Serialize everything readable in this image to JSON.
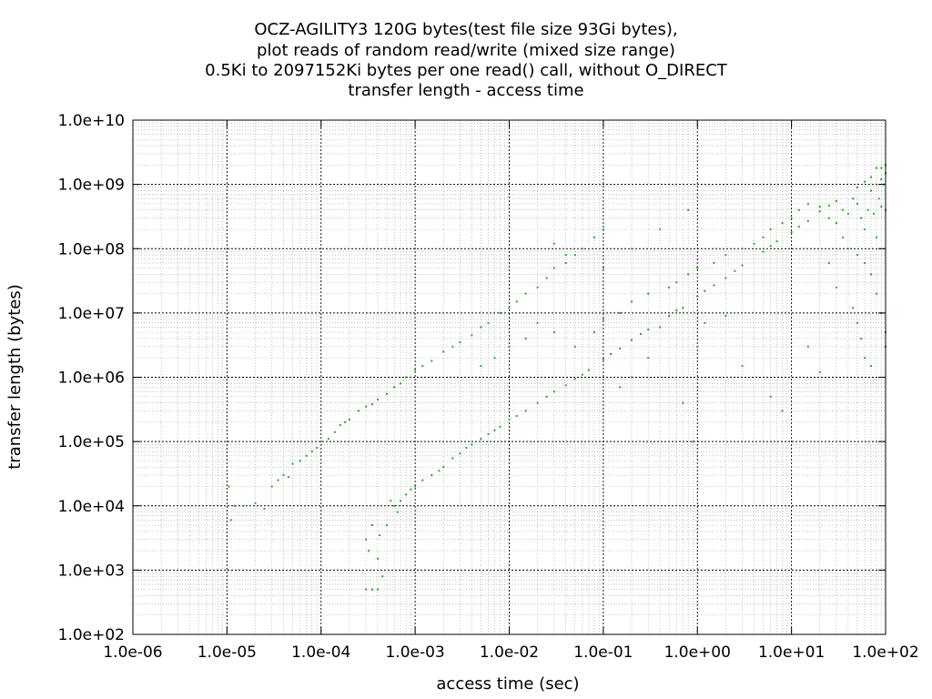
{
  "chart_data": {
    "type": "scatter",
    "title": [
      "OCZ-AGILITY3 120G bytes(test file size 93Gi bytes),",
      "plot reads of random read/write (mixed size range)",
      "0.5Ki to 2097152Ki bytes per one read() call, without O_DIRECT",
      "transfer length - access time"
    ],
    "xlabel": "access time (sec)",
    "ylabel": "transfer length (bytes)",
    "x_scale": "log",
    "y_scale": "log",
    "xlim": [
      1e-06,
      100
    ],
    "ylim": [
      100,
      10000000000
    ],
    "x_tick_labels": [
      "1.0e-06",
      "1.0e-05",
      "1.0e-04",
      "1.0e-03",
      "1.0e-02",
      "1.0e-01",
      "1.0e+00",
      "1.0e+01",
      "1.0e+02"
    ],
    "y_tick_labels": [
      "1.0e+02",
      "1.0e+03",
      "1.0e+04",
      "1.0e+05",
      "1.0e+06",
      "1.0e+07",
      "1.0e+08",
      "1.0e+09",
      "1.0e+10"
    ],
    "grid": true,
    "point_color": "#00c000",
    "series": [
      {
        "points": [
          [
            1.05e-05,
            20000
          ],
          [
            1.1e-05,
            6000
          ],
          [
            1.2e-05,
            10000
          ],
          [
            1.5e-05,
            10000
          ],
          [
            2e-05,
            11000
          ],
          [
            2.5e-05,
            9000
          ],
          [
            3e-05,
            20000
          ],
          [
            3.5e-05,
            25000
          ],
          [
            4e-05,
            30000
          ],
          [
            4.5e-05,
            28000
          ],
          [
            5e-05,
            45000
          ],
          [
            6e-05,
            50000
          ],
          [
            7e-05,
            60000
          ],
          [
            8e-05,
            70000
          ],
          [
            9e-05,
            80000
          ],
          [
            0.0001,
            100000
          ],
          [
            0.00012,
            110000
          ],
          [
            0.00014,
            140000
          ],
          [
            0.00016,
            180000
          ],
          [
            0.00018,
            200000
          ],
          [
            0.0002,
            220000
          ],
          [
            0.00025,
            300000
          ],
          [
            0.0003,
            350000
          ],
          [
            0.00035,
            380000
          ],
          [
            0.0004,
            450000
          ],
          [
            0.0005,
            550000
          ],
          [
            0.0006,
            700000
          ],
          [
            0.0007,
            800000
          ],
          [
            0.0008,
            1000000
          ],
          [
            0.001,
            1300000
          ],
          [
            0.0012,
            1500000
          ],
          [
            0.0015,
            1800000
          ],
          [
            0.002,
            2500000
          ],
          [
            0.0025,
            3000000
          ],
          [
            0.003,
            3500000
          ],
          [
            0.004,
            4500000
          ],
          [
            0.005,
            6000000
          ],
          [
            0.006,
            7000000
          ],
          [
            0.008,
            10000000
          ],
          [
            0.01,
            12000000
          ],
          [
            0.012,
            15000000
          ],
          [
            0.015,
            20000000
          ],
          [
            0.02,
            25000000
          ],
          [
            0.025,
            35000000
          ],
          [
            0.03,
            50000000
          ],
          [
            0.04,
            60000000
          ],
          [
            0.05,
            80000000
          ],
          [
            0.06,
            100000000
          ],
          [
            0.08,
            150000000
          ],
          [
            0.1,
            200000000
          ],
          [
            0.0003,
            3000
          ],
          [
            0.00032,
            2000
          ],
          [
            0.00035,
            5000
          ],
          [
            0.0004,
            1500
          ],
          [
            0.00042,
            3500
          ],
          [
            0.00045,
            800
          ],
          [
            0.0003,
            500
          ],
          [
            0.00035,
            500
          ],
          [
            0.0004,
            500
          ],
          [
            0.0005,
            5000
          ],
          [
            0.0006,
            10000
          ],
          [
            0.00065,
            8000
          ],
          [
            0.0007,
            12000
          ],
          [
            0.0008,
            15000
          ],
          [
            0.001,
            20000
          ],
          [
            0.0012,
            25000
          ],
          [
            0.0015,
            30000
          ],
          [
            0.002,
            40000
          ],
          [
            0.0025,
            55000
          ],
          [
            0.003,
            65000
          ],
          [
            0.004,
            90000
          ],
          [
            0.005,
            110000
          ],
          [
            0.006,
            130000
          ],
          [
            0.008,
            170000
          ],
          [
            0.01,
            220000
          ],
          [
            0.015,
            300000
          ],
          [
            0.02,
            400000
          ],
          [
            0.03,
            600000
          ],
          [
            0.04,
            750000
          ],
          [
            0.05,
            950000
          ],
          [
            0.07,
            1300000
          ],
          [
            0.1,
            1900000
          ],
          [
            0.15,
            2800000
          ],
          [
            0.2,
            3800000
          ],
          [
            0.3,
            5500000
          ],
          [
            0.5,
            9000000
          ],
          [
            0.7,
            12000000
          ],
          [
            1,
            18000000
          ],
          [
            1.5,
            27000000
          ],
          [
            2,
            35000000
          ],
          [
            3,
            55000000
          ],
          [
            5,
            90000000
          ],
          [
            7,
            130000000
          ],
          [
            10,
            180000000
          ],
          [
            15,
            270000000
          ],
          [
            20,
            380000000
          ],
          [
            30,
            550000000
          ],
          [
            50,
            900000000
          ],
          [
            70,
            1300000000
          ],
          [
            100,
            2000000000
          ],
          [
            0.00055,
            12000
          ],
          [
            0.0009,
            18000
          ],
          [
            0.0018,
            35000
          ],
          [
            0.0035,
            80000
          ],
          [
            0.007,
            150000
          ],
          [
            0.012,
            250000
          ],
          [
            0.025,
            500000
          ],
          [
            0.06,
            1100000
          ],
          [
            0.12,
            2300000
          ],
          [
            0.25,
            4700000
          ],
          [
            0.6,
            11000000
          ],
          [
            1.2,
            22000000
          ],
          [
            2.5,
            45000000
          ],
          [
            6,
            110000000
          ],
          [
            12,
            220000000
          ],
          [
            25,
            470000000
          ],
          [
            60,
            1100000000
          ],
          [
            90,
            1800000000
          ],
          [
            0.05,
            3000000
          ],
          [
            0.08,
            5000000
          ],
          [
            0.1,
            8000000
          ],
          [
            0.15,
            10000000
          ],
          [
            0.2,
            15000000
          ],
          [
            0.3,
            20000000
          ],
          [
            0.4,
            6000000
          ],
          [
            0.5,
            25000000
          ],
          [
            0.6,
            30000000
          ],
          [
            0.8,
            40000000
          ],
          [
            1,
            50000000
          ],
          [
            1.5,
            60000000
          ],
          [
            2,
            80000000
          ],
          [
            3,
            100000000
          ],
          [
            4,
            120000000
          ],
          [
            5,
            150000000
          ],
          [
            6,
            200000000
          ],
          [
            8,
            250000000
          ],
          [
            10,
            300000000
          ],
          [
            12,
            400000000
          ],
          [
            15,
            500000000
          ],
          [
            20,
            450000000
          ],
          [
            25,
            300000000
          ],
          [
            30,
            250000000
          ],
          [
            35,
            400000000
          ],
          [
            40,
            350000000
          ],
          [
            45,
            600000000
          ],
          [
            50,
            500000000
          ],
          [
            55,
            300000000
          ],
          [
            60,
            200000000
          ],
          [
            65,
            400000000
          ],
          [
            70,
            800000000
          ],
          [
            75,
            350000000
          ],
          [
            80,
            150000000
          ],
          [
            85,
            600000000
          ],
          [
            90,
            450000000
          ],
          [
            95,
            1000000000
          ],
          [
            100,
            400000000
          ],
          [
            100,
            1500000000
          ],
          [
            90,
            1200000000
          ],
          [
            80,
            1800000000
          ],
          [
            40,
            100000000
          ],
          [
            50,
            80000000
          ],
          [
            60,
            60000000
          ],
          [
            70,
            40000000
          ],
          [
            80,
            20000000
          ],
          [
            90,
            10000000
          ],
          [
            100,
            5000000
          ],
          [
            100,
            3000000
          ],
          [
            45,
            12000000
          ],
          [
            50,
            7000000
          ],
          [
            55,
            4000000
          ],
          [
            60,
            2000000
          ],
          [
            70,
            1500000
          ],
          [
            20,
            1200000
          ],
          [
            15,
            3000000
          ],
          [
            30,
            25000000
          ],
          [
            25,
            60000000
          ],
          [
            35,
            150000000
          ],
          [
            0.7,
            400000
          ],
          [
            0.9,
            100000
          ],
          [
            1,
            3000000
          ],
          [
            0.3,
            2000000
          ],
          [
            0.2,
            1000000
          ],
          [
            0.15,
            700000
          ],
          [
            6,
            500000
          ],
          [
            8,
            300000
          ],
          [
            3,
            1500000
          ],
          [
            2,
            9000000
          ],
          [
            1.2,
            7000000
          ],
          [
            0.02,
            7000000
          ],
          [
            0.03,
            5000000
          ],
          [
            0.01,
            3000000
          ],
          [
            0.015,
            4000000
          ],
          [
            0.007,
            2000000
          ],
          [
            0.005,
            1500000
          ],
          [
            0.03,
            120000000
          ],
          [
            0.04,
            80000000
          ],
          [
            0.1,
            50000000
          ],
          [
            0.2,
            100000000
          ],
          [
            0.4,
            200000000
          ],
          [
            0.8,
            400000000
          ]
        ]
      }
    ]
  }
}
